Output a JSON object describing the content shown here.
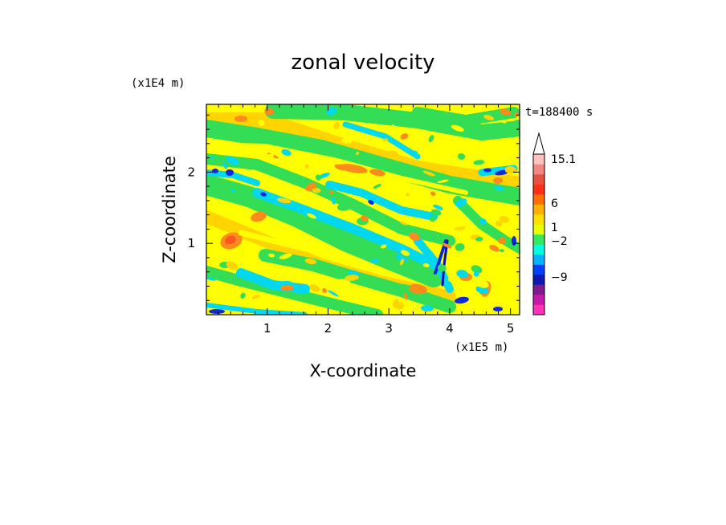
{
  "chart_data": {
    "type": "heatmap",
    "title": "zonal velocity",
    "xlabel": "X-coordinate",
    "ylabel": "Z-coordinate",
    "x_scale_note": "(x1E5 m)",
    "y_scale_note": "(x1E4 m)",
    "time_label": "t=188400 s",
    "xlim": [
      0,
      5.15
    ],
    "ylim": [
      0,
      2.95
    ],
    "x_ticks": [
      1,
      2,
      3,
      4,
      5
    ],
    "y_ticks": [
      1,
      2
    ],
    "x_tick_labels": [
      "1",
      "2",
      "3",
      "4",
      "5"
    ],
    "y_tick_labels": [
      "1",
      "2"
    ],
    "grid": false,
    "colorbar": {
      "labels": [
        "15.1",
        "6",
        "1",
        "−2",
        "−9"
      ],
      "colors": [
        "#ff33b8",
        "#c81aa8",
        "#80198c",
        "#1018b0",
        "#0040ff",
        "#00b4ff",
        "#00ffe0",
        "#36e860",
        "#e8ff00",
        "#ffe000",
        "#ffb000",
        "#ff7000",
        "#ff3018",
        "#e85040",
        "#f08880",
        "#ffc0c0"
      ],
      "extend_max": true
    },
    "colors": {
      "green": "#33dd55",
      "cyan": "#00d8f0",
      "yellow": "#ffff00",
      "gold": "#ffd400",
      "orange": "#ff8c1a",
      "red": "#ff5522",
      "blue": "#0d2bd9",
      "deep": "#0010b0"
    }
  }
}
